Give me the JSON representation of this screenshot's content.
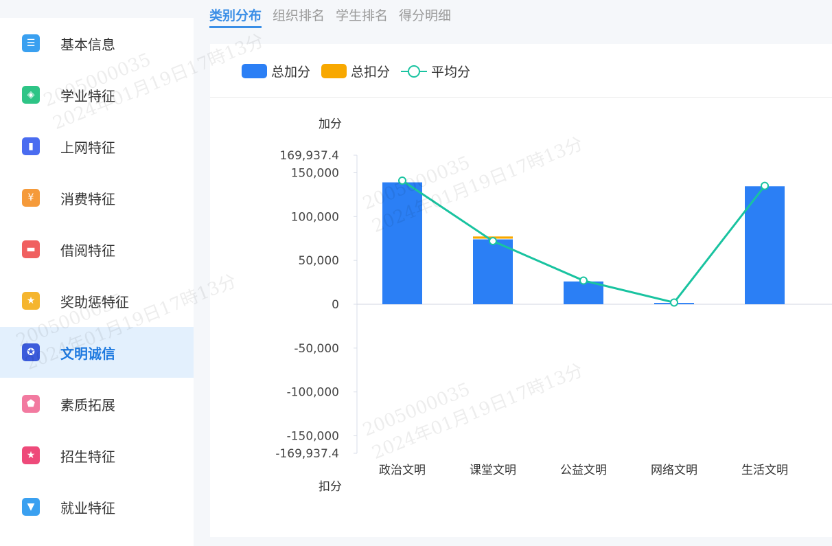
{
  "sidebar": {
    "items": [
      {
        "label": "基本信息",
        "icon": "document-icon",
        "color": "#3aa0f0"
      },
      {
        "label": "学业特征",
        "icon": "layers-icon",
        "color": "#2ec486"
      },
      {
        "label": "上网特征",
        "icon": "mouse-icon",
        "color": "#4a6cf0"
      },
      {
        "label": "消费特征",
        "icon": "wallet-yen-icon",
        "color": "#f59a3a"
      },
      {
        "label": "借阅特征",
        "icon": "book-icon",
        "color": "#f06060"
      },
      {
        "label": "奖助惩特征",
        "icon": "trophy-icon",
        "color": "#f5b52e"
      },
      {
        "label": "文明诚信",
        "icon": "medal-icon",
        "color": "#3b5bdb",
        "active": true
      },
      {
        "label": "素质拓展",
        "icon": "pentagon-icon",
        "color": "#f27aa0"
      },
      {
        "label": "招生特征",
        "icon": "flag-icon",
        "color": "#ee4a7a"
      },
      {
        "label": "就业特征",
        "icon": "tie-icon",
        "color": "#3aa0f0"
      }
    ]
  },
  "tabs": [
    {
      "label": "类别分布",
      "active": true
    },
    {
      "label": "组织排名"
    },
    {
      "label": "学生排名"
    },
    {
      "label": "得分明细"
    }
  ],
  "watermark": {
    "id": "2005000035",
    "time": "2024年01月19日17時13分"
  },
  "chart_data": {
    "type": "bar",
    "categories": [
      "政治文明",
      "课堂文明",
      "公益文明",
      "网络文明",
      "生活文明"
    ],
    "series": [
      {
        "name": "总加分",
        "type": "bar",
        "color": "#2b7ff5",
        "values": [
          139000,
          74000,
          26000,
          1500,
          134500
        ]
      },
      {
        "name": "总扣分",
        "type": "bar",
        "color": "#f8a800",
        "values": [
          0,
          2500,
          0,
          0,
          0
        ]
      },
      {
        "name": "平均分",
        "type": "line",
        "color": "#19c3a0",
        "values": [
          141000,
          72000,
          27000,
          2000,
          135000
        ]
      }
    ],
    "ylabel_top": "加分",
    "ylabel_bottom": "扣分",
    "ylim": [
      -169937.4,
      169937.4
    ],
    "yticks": [
      "169,937.4",
      "150,000",
      "100,000",
      "50,000",
      "0",
      "-50,000",
      "-100,000",
      "-150,000",
      "-169,937.4"
    ],
    "ytick_values": [
      169937.4,
      150000,
      100000,
      50000,
      0,
      -50000,
      -100000,
      -150000,
      -169937.4
    ],
    "legend": "top-left",
    "grid": false
  }
}
